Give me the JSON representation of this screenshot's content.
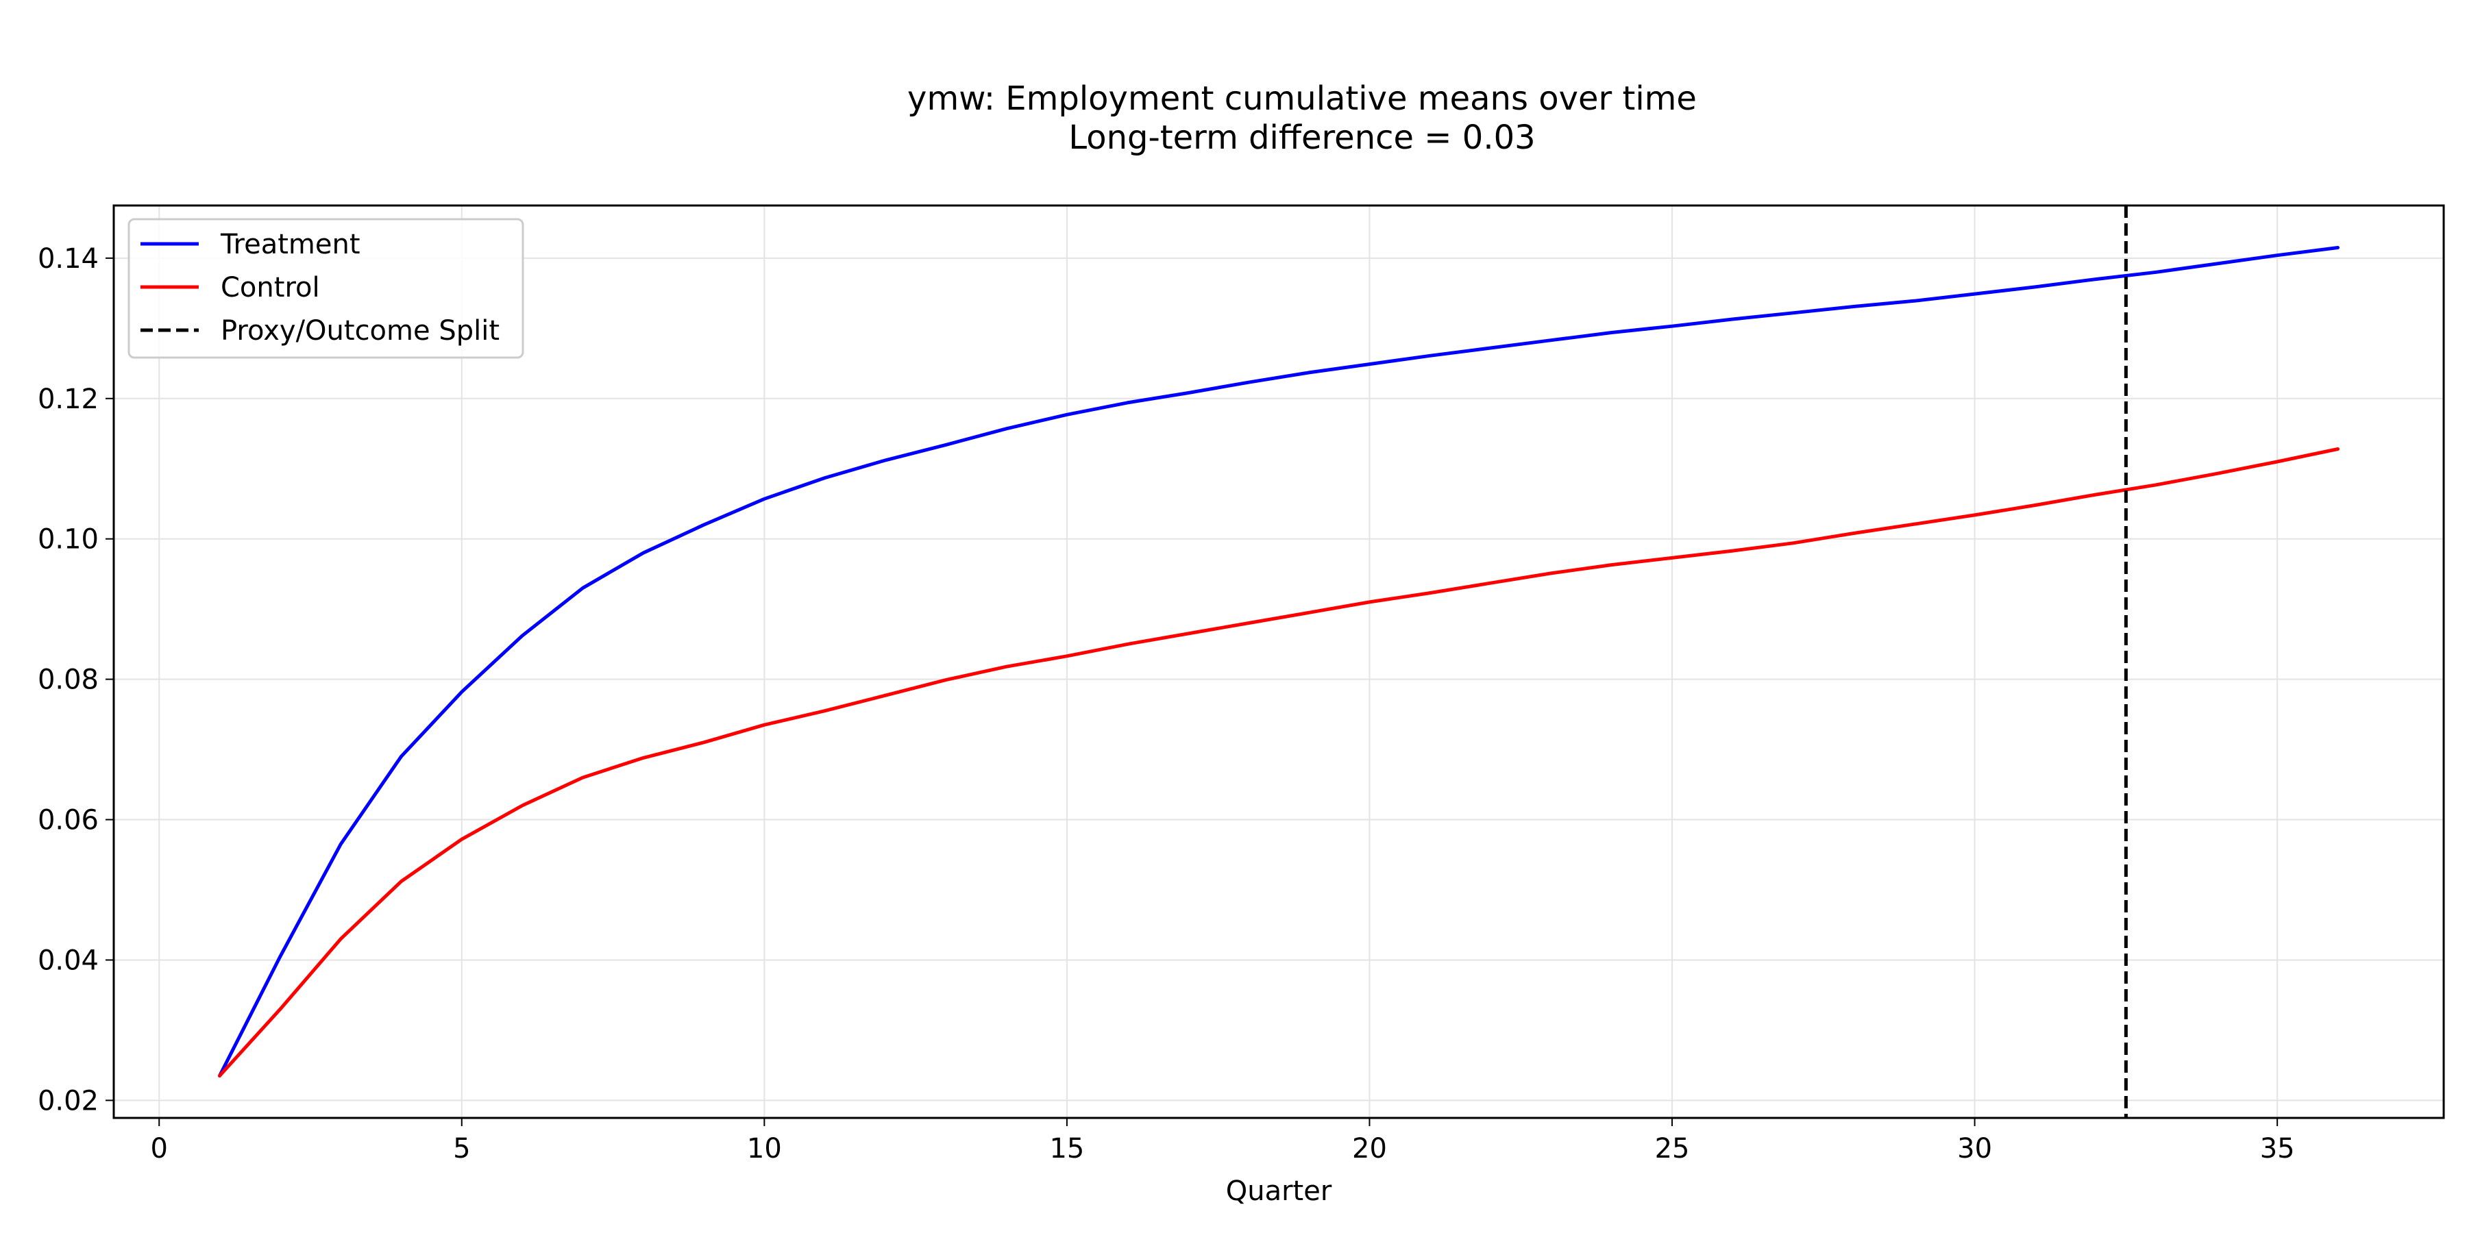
{
  "chart_data": {
    "type": "line",
    "title": "ymw: Employment cumulative means over time",
    "subtitle": "Long-term difference = 0.03",
    "xlabel": "Quarter",
    "ylabel": "",
    "xlim": [
      -0.75,
      37.75
    ],
    "ylim": [
      0.0175,
      0.1475
    ],
    "xticks": [
      0,
      5,
      10,
      15,
      20,
      25,
      30,
      35
    ],
    "yticks": [
      0.02,
      0.04,
      0.06,
      0.08,
      0.1,
      0.12,
      0.14
    ],
    "xtick_labels": [
      "0",
      "5",
      "10",
      "15",
      "20",
      "25",
      "30",
      "35"
    ],
    "ytick_labels": [
      "0.02",
      "0.04",
      "0.06",
      "0.08",
      "0.10",
      "0.12",
      "0.14"
    ],
    "grid": true,
    "legend_position": "top-left",
    "x": [
      1,
      2,
      3,
      4,
      5,
      6,
      7,
      8,
      9,
      10,
      11,
      12,
      13,
      14,
      15,
      16,
      17,
      18,
      19,
      20,
      21,
      22,
      23,
      24,
      25,
      26,
      27,
      28,
      29,
      30,
      31,
      32,
      33,
      34,
      35,
      36
    ],
    "series": [
      {
        "name": "Treatment",
        "color": "#0000ff",
        "style": "solid",
        "values": [
          0.0235,
          0.0405,
          0.0565,
          0.069,
          0.0782,
          0.0862,
          0.093,
          0.098,
          0.102,
          0.1057,
          0.1087,
          0.1112,
          0.1134,
          0.1157,
          0.1177,
          0.1194,
          0.1208,
          0.1223,
          0.1237,
          0.1249,
          0.1261,
          0.1272,
          0.1283,
          0.1294,
          0.1303,
          0.1313,
          0.1322,
          0.1331,
          0.1339,
          0.1349,
          0.1359,
          0.137,
          0.138,
          0.1392,
          0.1404,
          0.1415
        ]
      },
      {
        "name": "Control",
        "color": "#ff0000",
        "style": "solid",
        "values": [
          0.0235,
          0.033,
          0.043,
          0.0512,
          0.0572,
          0.062,
          0.066,
          0.0688,
          0.071,
          0.0735,
          0.0755,
          0.0777,
          0.0799,
          0.0818,
          0.0833,
          0.085,
          0.0865,
          0.088,
          0.0895,
          0.091,
          0.0923,
          0.0937,
          0.0951,
          0.0963,
          0.0973,
          0.0983,
          0.0994,
          0.1008,
          0.1021,
          0.1034,
          0.1048,
          0.1063,
          0.1077,
          0.1093,
          0.111,
          0.1128
        ]
      }
    ],
    "vlines": [
      {
        "name": "Proxy/Outcome Split",
        "x": 32.5,
        "color": "#000000",
        "style": "dashed"
      }
    ]
  }
}
